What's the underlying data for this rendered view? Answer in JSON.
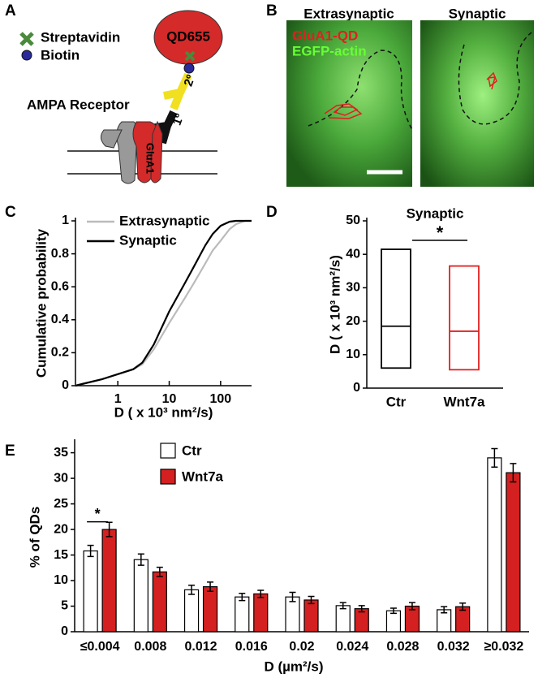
{
  "panel_a": {
    "letter": "A",
    "qd": "QD655",
    "streptavidin": "Streptavidin",
    "biotin": "Biotin",
    "secondary": "2º",
    "receptor": "AMPA Receptor",
    "primary": "1º",
    "subunit": "GluA1"
  },
  "panel_b": {
    "letter": "B",
    "titles": [
      "Extrasynaptic",
      "Synaptic"
    ],
    "legend": [
      "GluA1-QD",
      "EGFP-actin"
    ]
  },
  "chart_data": [
    {
      "panel": "C",
      "type": "line",
      "xscale": "log",
      "xlabel": "D ( x 10³ nm²/s)",
      "ylabel": "Cumulative probability",
      "xlim": [
        0.15,
        400
      ],
      "xticks": [
        1,
        10,
        100
      ],
      "ylim": [
        0,
        1
      ],
      "yticks": [
        0,
        0.2,
        0.4,
        0.6,
        0.8,
        1
      ],
      "legend": "upper left",
      "series": [
        {
          "name": "Extrasynaptic",
          "color": "#bbbbbb",
          "x": [
            0.15,
            0.2,
            0.5,
            1,
            2,
            3,
            5,
            10,
            20,
            30,
            50,
            70,
            100,
            150,
            200,
            300,
            400
          ],
          "values": [
            0,
            0.01,
            0.04,
            0.07,
            0.1,
            0.13,
            0.22,
            0.38,
            0.53,
            0.62,
            0.74,
            0.82,
            0.88,
            0.95,
            0.98,
            1,
            1
          ]
        },
        {
          "name": "Synaptic",
          "color": "#000000",
          "x": [
            0.15,
            0.2,
            0.5,
            1,
            2,
            3,
            5,
            10,
            20,
            30,
            50,
            70,
            100,
            150,
            200,
            400
          ],
          "values": [
            0,
            0.01,
            0.04,
            0.07,
            0.1,
            0.14,
            0.25,
            0.45,
            0.62,
            0.72,
            0.85,
            0.92,
            0.97,
            0.995,
            1,
            1
          ]
        }
      ]
    },
    {
      "panel": "D",
      "type": "box",
      "title": "Synaptic",
      "ylabel": "D ( x 10³ nm²/s)",
      "annotations": [
        "*"
      ],
      "categories": [
        "Ctr",
        "Wnt7a"
      ],
      "colors": [
        "#000000",
        "#e02020"
      ],
      "low": [
        6,
        5.5
      ],
      "median": [
        18.5,
        17
      ],
      "high": [
        41.5,
        36.5
      ],
      "ylim": [
        0,
        50
      ],
      "yticks": [
        0,
        10,
        20,
        30,
        40,
        50
      ]
    },
    {
      "panel": "E",
      "type": "bar",
      "xlabel": "D (µm²/s)",
      "ylabel": "% of QDs",
      "annotations": [
        "*"
      ],
      "categories": [
        "≤0.004",
        "0.008",
        "0.012",
        "0.016",
        "0.02",
        "0.024",
        "0.028",
        "0.032",
        "≥0.032"
      ],
      "ylim": [
        0,
        37
      ],
      "yticks": [
        0,
        5,
        10,
        15,
        20,
        25,
        30,
        35
      ],
      "series": [
        {
          "name": "Ctr",
          "color": "#ffffff",
          "values": [
            15.8,
            14.1,
            8.2,
            6.8,
            6.8,
            5.1,
            4.1,
            4.3,
            34
          ],
          "errors": [
            1.1,
            1.1,
            0.9,
            0.7,
            0.9,
            0.6,
            0.5,
            0.6,
            1.8
          ]
        },
        {
          "name": "Wnt7a",
          "color": "#d42020",
          "values": [
            20,
            11.7,
            8.8,
            7.4,
            6.2,
            4.5,
            5.0,
            4.9,
            31.1
          ],
          "errors": [
            1.4,
            0.9,
            0.9,
            0.7,
            0.7,
            0.6,
            0.7,
            0.7,
            1.8
          ]
        }
      ]
    }
  ]
}
